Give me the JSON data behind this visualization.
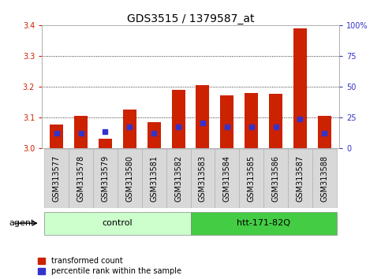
{
  "title": "GDS3515 / 1379587_at",
  "categories": [
    "GSM313577",
    "GSM313578",
    "GSM313579",
    "GSM313580",
    "GSM313581",
    "GSM313582",
    "GSM313583",
    "GSM313584",
    "GSM313585",
    "GSM313586",
    "GSM313587",
    "GSM313588"
  ],
  "red_values": [
    3.075,
    3.105,
    3.03,
    3.125,
    3.085,
    3.19,
    3.205,
    3.17,
    3.18,
    3.175,
    3.39,
    3.105
  ],
  "blue_values": [
    3.047,
    3.048,
    3.052,
    3.068,
    3.048,
    3.068,
    3.082,
    3.068,
    3.068,
    3.068,
    3.095,
    3.048
  ],
  "ymin": 3.0,
  "ymax": 3.4,
  "y2min": 0,
  "y2max": 100,
  "yticks": [
    3.0,
    3.1,
    3.2,
    3.3,
    3.4
  ],
  "y2ticks": [
    0,
    25,
    50,
    75,
    100
  ],
  "y2ticklabels": [
    "0",
    "25",
    "50",
    "75",
    "100%"
  ],
  "bar_color": "#cc2200",
  "blue_color": "#3333cc",
  "bar_width": 0.55,
  "group_spans_control": [
    0,
    5
  ],
  "group_spans_htt": [
    6,
    11
  ],
  "control_color": "#ccffcc",
  "htt_color": "#44cc44",
  "control_label": "control",
  "htt_label": "htt-171-82Q",
  "agent_label": "agent",
  "legend_red_label": "transformed count",
  "legend_blue_label": "percentile rank within the sample",
  "title_fontsize": 10,
  "tick_fontsize": 7,
  "label_fontsize": 8,
  "group_fontsize": 8,
  "ytick_color": "#cc2200",
  "y2tick_color": "#3333cc",
  "plot_bg": "#ffffff",
  "xlabelbox_color": "#d8d8d8",
  "xlabelbox_edge": "#aaaaaa"
}
